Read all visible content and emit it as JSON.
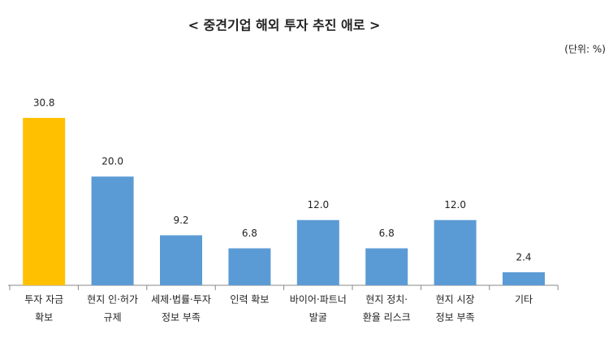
{
  "chart_data": {
    "type": "bar",
    "title": "< 중견기업 해외 투자 추진 애로 >",
    "unit_note": "(단위: %)",
    "categories": [
      [
        "투자 자금",
        "확보"
      ],
      [
        "현지 인·허가",
        "규제"
      ],
      [
        "세제·법률·투자",
        "정보 부족"
      ],
      [
        "인력 확보"
      ],
      [
        "바이어·파트너",
        "발굴"
      ],
      [
        "현지 정치·",
        "환율 리스크"
      ],
      [
        "현지 시장",
        "정보 부족"
      ],
      [
        "기타"
      ]
    ],
    "values": [
      30.8,
      20.0,
      9.2,
      6.8,
      12.0,
      6.8,
      12.0,
      2.4
    ],
    "value_labels": [
      "30.8",
      "20.0",
      "9.2",
      "6.8",
      "12.0",
      "6.8",
      "12.0",
      "2.4"
    ],
    "colors": [
      "#FFC000",
      "#5B9BD5",
      "#5B9BD5",
      "#5B9BD5",
      "#5B9BD5",
      "#5B9BD5",
      "#5B9BD5",
      "#5B9BD5"
    ]
  }
}
